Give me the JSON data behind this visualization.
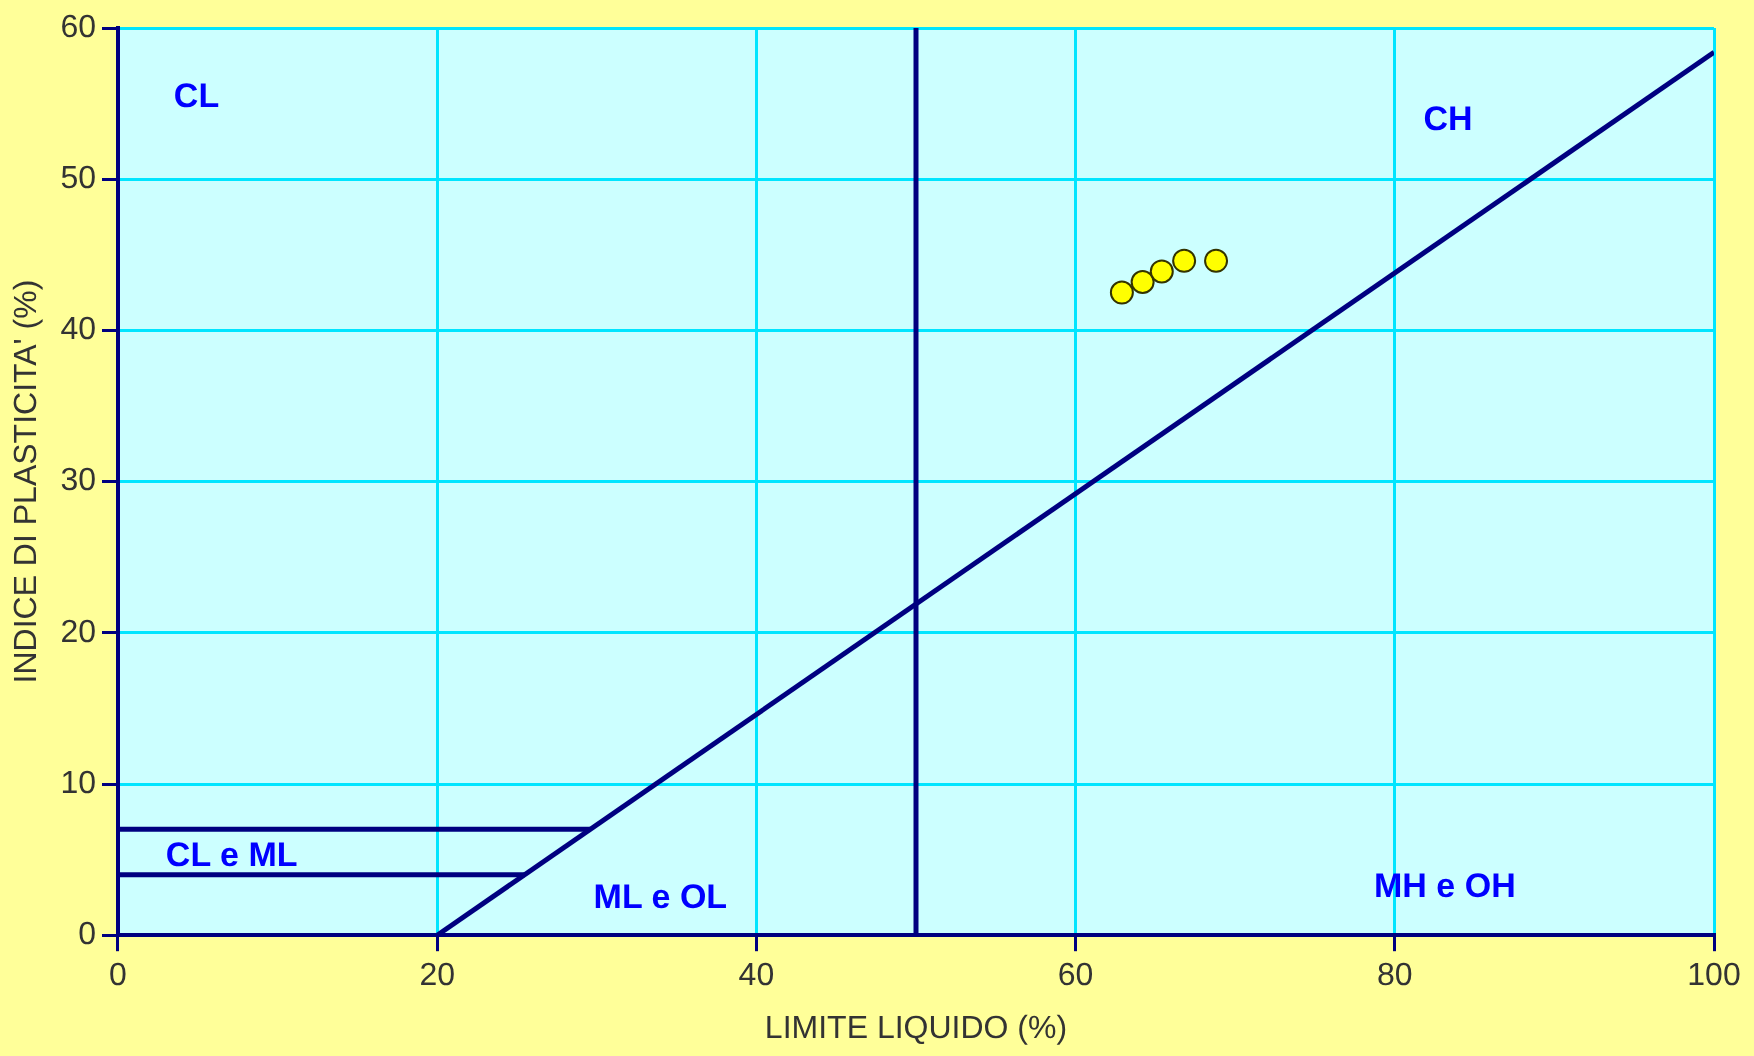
{
  "chart_data": {
    "type": "scatter",
    "xlabel": "LIMITE LIQUIDO (%)",
    "ylabel": "INDICE DI PLASTICITA' (%)",
    "xlim": [
      0,
      100
    ],
    "ylim": [
      0,
      60
    ],
    "xticks": [
      0,
      20,
      40,
      60,
      80,
      100
    ],
    "yticks": [
      0,
      10,
      20,
      30,
      40,
      50,
      60
    ],
    "grid": true,
    "legend": false,
    "series": [
      {
        "type": "line",
        "marker": "none",
        "color": "#000080",
        "x": [
          20,
          100
        ],
        "values": [
          0,
          58.4
        ]
      },
      {
        "type": "line",
        "marker": "none",
        "color": "#000080",
        "x": [
          0,
          29.6
        ],
        "values": [
          7,
          7
        ]
      },
      {
        "type": "line",
        "marker": "none",
        "color": "#000080",
        "x": [
          0,
          25.5
        ],
        "values": [
          4,
          4
        ]
      },
      {
        "type": "scatter",
        "marker": "circle",
        "color": "#ffff00",
        "x": [
          62.9,
          64.2,
          65.4,
          66.8,
          68.8
        ],
        "values": [
          42.5,
          43.2,
          43.9,
          44.6,
          44.6
        ]
      }
    ],
    "ref_lines": [
      {
        "axis": "x",
        "value": 50,
        "color": "#000080"
      }
    ],
    "annotations": [
      "CL",
      "CH",
      "CL e ML",
      "ML e OL",
      "MH e OH"
    ]
  }
}
